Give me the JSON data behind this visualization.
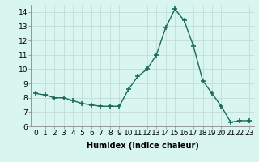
{
  "x": [
    0,
    1,
    2,
    3,
    4,
    5,
    6,
    7,
    8,
    9,
    10,
    11,
    12,
    13,
    14,
    15,
    16,
    17,
    18,
    19,
    20,
    21,
    22,
    23
  ],
  "y": [
    8.3,
    8.2,
    8.0,
    8.0,
    7.8,
    7.6,
    7.5,
    7.4,
    7.4,
    7.4,
    8.6,
    9.5,
    10.0,
    11.0,
    12.9,
    14.2,
    13.4,
    11.6,
    9.2,
    8.3,
    7.4,
    6.3,
    6.4,
    6.4
  ],
  "line_color": "#1a6b5a",
  "marker": "+",
  "marker_size": 4,
  "marker_lw": 1.2,
  "bg_color": "#d8f5f0",
  "grid_color": "#c0ddd8",
  "xlabel": "Humidex (Indice chaleur)",
  "ylim": [
    6,
    14.5
  ],
  "xlim": [
    -0.5,
    23.5
  ],
  "yticks": [
    6,
    7,
    8,
    9,
    10,
    11,
    12,
    13,
    14
  ],
  "xticks": [
    0,
    1,
    2,
    3,
    4,
    5,
    6,
    7,
    8,
    9,
    10,
    11,
    12,
    13,
    14,
    15,
    16,
    17,
    18,
    19,
    20,
    21,
    22,
    23
  ],
  "xlabel_fontsize": 7,
  "tick_fontsize": 6.5,
  "line_width": 1.0
}
